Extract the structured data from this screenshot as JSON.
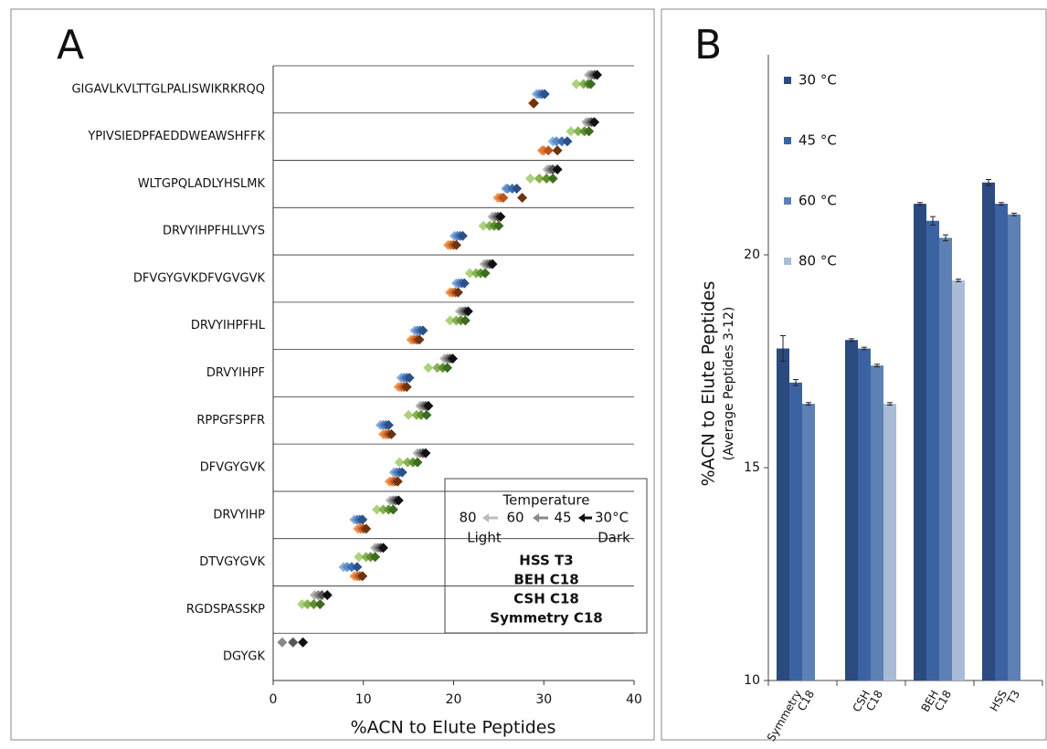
{
  "chart_data": [
    {
      "type": "dot",
      "panel_label": "A",
      "xlabel": "%ACN to Elute Peptides",
      "xlim": [
        0,
        40
      ],
      "xticks": [
        0,
        10,
        20,
        30,
        40
      ],
      "categories": [
        "GIGAVLKVLTTGLPALISWIKRKRQQ",
        "YPIVSIEDPFAEDDWEAWSHFFK",
        "WLTGPQLADLYHSLMK",
        "DRVYIHPFHLLVYS",
        "DFVGYGVKDFVGVGVK",
        "DRVYIHPFHL",
        "DRVYIHPF",
        "RPPGFSPFR",
        "DFVGYGVK",
        "DRVYIHP",
        "DTVGYGVK",
        "RGDSPASSKP",
        "DGYGK"
      ],
      "legend_title": "Temperature",
      "temperatures": [
        "30°C",
        "45",
        "60",
        "80"
      ],
      "dark_label": "Dark",
      "light_label": "Light",
      "series": [
        {
          "name": "HSS T3",
          "color": "#111111",
          "shades": [
            "#111111",
            "#555555",
            "#888888",
            "#b5b5b5"
          ],
          "values": [
            [
              35.9,
              35.6,
              35.3,
              35.0
            ],
            [
              35.6,
              35.3,
              35.0,
              34.7
            ],
            [
              31.5,
              31.0,
              30.7,
              30.4
            ],
            [
              25.2,
              24.9,
              24.6,
              24.3
            ],
            [
              24.3,
              24.0,
              23.7,
              23.4
            ],
            [
              21.6,
              21.3,
              21.0,
              20.7
            ],
            [
              19.9,
              19.6,
              19.3,
              19.0
            ],
            [
              17.2,
              16.9,
              16.6,
              16.3
            ],
            [
              16.9,
              16.6,
              16.3,
              16.0
            ],
            [
              13.9,
              13.6,
              13.3,
              13.0
            ],
            [
              12.2,
              11.9,
              11.6,
              11.3
            ],
            [
              6.0,
              5.4,
              5.0,
              4.6
            ],
            [
              3.3,
              2.2,
              1.0,
              null
            ]
          ]
        },
        {
          "name": "BEH C18",
          "color": "#5b7f2a",
          "shades": [
            "#3d6b1f",
            "#5e8f32",
            "#86b34e",
            "#add27f"
          ],
          "values": [
            [
              35.2,
              34.9,
              34.4,
              33.6
            ],
            [
              35.0,
              34.5,
              33.8,
              33.0
            ],
            [
              31.0,
              30.3,
              29.5,
              28.5
            ],
            [
              25.0,
              24.5,
              24.0,
              23.3
            ],
            [
              23.5,
              23.0,
              22.5,
              21.8
            ],
            [
              21.3,
              20.8,
              20.3,
              19.6
            ],
            [
              19.3,
              18.8,
              18.2,
              17.2
            ],
            [
              17.0,
              16.4,
              15.9,
              15.0
            ],
            [
              16.0,
              15.5,
              14.9,
              14.0
            ],
            [
              13.3,
              12.8,
              12.2,
              11.5
            ],
            [
              11.3,
              10.8,
              10.3,
              9.5
            ],
            [
              5.2,
              4.5,
              3.8,
              3.2
            ],
            [
              null,
              null,
              null,
              null
            ]
          ]
        },
        {
          "name": "CSH C18",
          "color": "#2e2d70",
          "shades": [
            "#2d4f8a",
            "#3f6fb0",
            "#5b8cc8",
            "#8cb0da"
          ],
          "values": [
            [
              30.1,
              29.8,
              29.5,
              29.2
            ],
            [
              32.6,
              32.0,
              31.4,
              31.0
            ],
            [
              27.0,
              26.5,
              26.0,
              25.8
            ],
            [
              21.0,
              20.7,
              20.4,
              20.1
            ],
            [
              21.2,
              20.9,
              20.6,
              20.3
            ],
            [
              16.6,
              16.3,
              16.0,
              15.7
            ],
            [
              15.1,
              14.8,
              14.5,
              14.2
            ],
            [
              12.8,
              12.5,
              12.2,
              11.9
            ],
            [
              14.3,
              14.0,
              13.7,
              13.4
            ],
            [
              9.9,
              9.6,
              9.3,
              9.0
            ],
            [
              9.3,
              8.7,
              8.2,
              7.8
            ],
            [
              null,
              null,
              null,
              null
            ],
            [
              null,
              null,
              null,
              null
            ]
          ]
        },
        {
          "name": "Symmetry C18",
          "color": "#8a4a1c",
          "shades": [
            "#6b3410",
            "#b8541e",
            "#e07832",
            "#f09a58"
          ],
          "values": [
            [
              28.9,
              28.9,
              28.8,
              28.8
            ],
            [
              31.5,
              30.5,
              30.0,
              29.8
            ],
            [
              27.6,
              25.5,
              25.2,
              24.9
            ],
            [
              20.3,
              20.0,
              19.7,
              19.4
            ],
            [
              20.5,
              20.2,
              19.9,
              19.6
            ],
            [
              16.2,
              15.9,
              15.6,
              15.3
            ],
            [
              14.8,
              14.5,
              14.2,
              13.9
            ],
            [
              13.1,
              12.8,
              12.5,
              12.2
            ],
            [
              13.8,
              13.5,
              13.2,
              12.9
            ],
            [
              10.3,
              10.0,
              9.7,
              9.4
            ],
            [
              9.9,
              9.6,
              9.3,
              9.0
            ],
            [
              null,
              null,
              null,
              null
            ],
            [
              null,
              null,
              null,
              null
            ]
          ]
        }
      ]
    },
    {
      "type": "bar",
      "panel_label": "B",
      "ylabel": "%ACN to Elute Peptides",
      "ylabel_sub": "(Average Peptides 3-12)",
      "ylim": [
        10,
        24.7
      ],
      "yticks": [
        10,
        15,
        20
      ],
      "categories": [
        "Symmetry",
        "CSH",
        "BEH",
        "HSS"
      ],
      "category_subs": [
        "C18",
        "C18",
        "C18",
        "T3"
      ],
      "series": [
        {
          "name": "30 °C",
          "color": "#2a4a80",
          "values": [
            17.8,
            18.0,
            21.2,
            21.7
          ],
          "errors": [
            0.3,
            0.03,
            0.03,
            0.07
          ]
        },
        {
          "name": "45 °C",
          "color": "#3b63a2",
          "values": [
            17.0,
            17.8,
            20.8,
            21.2
          ],
          "errors": [
            0.07,
            0.03,
            0.1,
            0.03
          ]
        },
        {
          "name": "60 °C",
          "color": "#5d80b5",
          "values": [
            16.5,
            17.4,
            20.4,
            20.95
          ],
          "errors": [
            0.03,
            0.03,
            0.07,
            0.03
          ]
        },
        {
          "name": "80 °C",
          "color": "#a8bcd8",
          "values": [
            null,
            16.5,
            19.4,
            null
          ],
          "errors": [
            null,
            0.03,
            0.03,
            null
          ]
        }
      ]
    }
  ]
}
